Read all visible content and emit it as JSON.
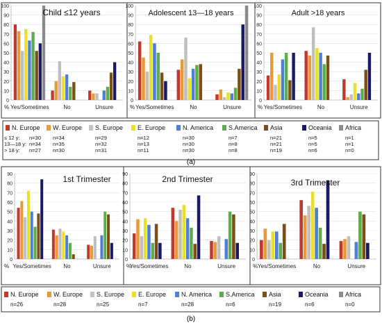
{
  "captions": {
    "a": "(a)",
    "b": "(b)"
  },
  "colors": {
    "N. Europe": "#c0392b",
    "W. Europe": "#e69a3a",
    "S. Europe": "#bfbfbf",
    "E. Europe": "#e8e02a",
    "N. America": "#4d7fd6",
    "S.America": "#5fad4a",
    "Asia": "#7a4f18",
    "Oceania": "#1a1a66",
    "Africa": "#8a8a8a"
  },
  "legend_a": {
    "series": [
      "N. Europe",
      "W. Europe",
      "S. Europe",
      "E. Europe",
      "N. America",
      "S.America",
      "Asia",
      "Oceania",
      "Africa"
    ],
    "rows": [
      {
        "label": "≤ 12 y:",
        "values": [
          "n=30",
          "n=34",
          "n=29",
          "n=12",
          "n=30",
          "n=7",
          "n=21",
          "n=5",
          "n=1"
        ]
      },
      {
        "label": "13—18 y:",
        "values": [
          "n=34",
          "n=35",
          "n=32",
          "n=13",
          "n=30",
          "n=8",
          "n=21",
          "n=5",
          "n=1"
        ]
      },
      {
        "label": "> 18 y:",
        "values": [
          "n=27",
          "n=30",
          "n=31",
          "n=11",
          "n=30",
          "n=8",
          "n=19",
          "n=6",
          "n=0"
        ]
      }
    ]
  },
  "legend_b": {
    "series": [
      "N. Europe",
      "W. Europe",
      "S. Europe",
      "E. Europe",
      "N. America",
      "S.America",
      "Asia",
      "Oceania",
      "Africa"
    ],
    "values": [
      "n=26",
      "n=28",
      "n=25",
      "n=7",
      "n=28",
      "n=6",
      "n=19",
      "n=6",
      "n=0"
    ]
  },
  "chart_data": [
    {
      "type": "bar",
      "title": "Child ≤12 years",
      "categories": [
        "Yes/Sometimes",
        "No",
        "Unsure"
      ],
      "ylim": [
        0,
        100
      ],
      "yticks": [
        "0",
        "10",
        "20",
        "30",
        "40",
        "50",
        "60",
        "70",
        "80",
        "90",
        "100"
      ],
      "ylabel": "%",
      "series": [
        {
          "name": "N. Europe",
          "values": [
            80,
            10,
            10
          ]
        },
        {
          "name": "W. Europe",
          "values": [
            73,
            20,
            7
          ]
        },
        {
          "name": "S. Europe",
          "values": [
            52,
            41,
            7
          ]
        },
        {
          "name": "E. Europe",
          "values": [
            75,
            25,
            0
          ]
        },
        {
          "name": "N. America",
          "values": [
            63,
            27,
            10
          ]
        },
        {
          "name": "S.America",
          "values": [
            72,
            14,
            14
          ]
        },
        {
          "name": "Asia",
          "values": [
            52,
            19,
            29
          ]
        },
        {
          "name": "Oceania",
          "values": [
            60,
            0,
            40
          ]
        },
        {
          "name": "Africa",
          "values": [
            100,
            0,
            0
          ]
        }
      ]
    },
    {
      "type": "bar",
      "title": "Adolescent 13—18 years",
      "categories": [
        "Yes/Sometimes",
        "No",
        "Unsure"
      ],
      "ylim": [
        0,
        100
      ],
      "yticks": [
        "0",
        "10",
        "20",
        "30",
        "40",
        "50",
        "60",
        "70",
        "80",
        "90",
        "100"
      ],
      "ylabel": "%",
      "series": [
        {
          "name": "N. Europe",
          "values": [
            62,
            32,
            6
          ]
        },
        {
          "name": "W. Europe",
          "values": [
            45,
            43,
            11
          ]
        },
        {
          "name": "S. Europe",
          "values": [
            30,
            66,
            3
          ]
        },
        {
          "name": "E. Europe",
          "values": [
            69,
            23,
            8
          ]
        },
        {
          "name": "N. America",
          "values": [
            60,
            33,
            7
          ]
        },
        {
          "name": "S.America",
          "values": [
            50,
            37,
            13
          ]
        },
        {
          "name": "Asia",
          "values": [
            29,
            38,
            33
          ]
        },
        {
          "name": "Oceania",
          "values": [
            20,
            0,
            80
          ]
        },
        {
          "name": "Africa",
          "values": [
            0,
            0,
            100
          ]
        }
      ]
    },
    {
      "type": "bar",
      "title": "Adult >18 years",
      "categories": [
        "Yes/Sometimes",
        "No",
        "Unsure"
      ],
      "ylim": [
        0,
        100
      ],
      "yticks": [
        "0",
        "10",
        "20",
        "30",
        "40",
        "50",
        "60",
        "70",
        "80",
        "90",
        "100"
      ],
      "ylabel": "%",
      "series": [
        {
          "name": "N. Europe",
          "values": [
            26,
            52,
            22
          ]
        },
        {
          "name": "W. Europe",
          "values": [
            50,
            47,
            3
          ]
        },
        {
          "name": "S. Europe",
          "values": [
            16,
            77,
            6
          ]
        },
        {
          "name": "E. Europe",
          "values": [
            27,
            55,
            18
          ]
        },
        {
          "name": "N. America",
          "values": [
            43,
            50,
            7
          ]
        },
        {
          "name": "S.America",
          "values": [
            50,
            38,
            12
          ]
        },
        {
          "name": "Asia",
          "values": [
            21,
            47,
            32
          ]
        },
        {
          "name": "Oceania",
          "values": [
            50,
            0,
            50
          ]
        },
        {
          "name": "Africa",
          "values": [
            0,
            0,
            0
          ]
        }
      ]
    },
    {
      "type": "bar",
      "title": "1st Trimester",
      "categories": [
        "Yes/Sometimes",
        "No",
        "Unsure"
      ],
      "ylim": [
        0,
        90
      ],
      "yticks": [
        "0",
        "10",
        "20",
        "30",
        "40",
        "50",
        "60",
        "70",
        "80",
        "90"
      ],
      "ylabel": "%",
      "series": [
        {
          "name": "N. Europe",
          "values": [
            54,
            31,
            15
          ]
        },
        {
          "name": "W. Europe",
          "values": [
            61,
            25,
            14
          ]
        },
        {
          "name": "S. Europe",
          "values": [
            44,
            32,
            24
          ]
        },
        {
          "name": "E. Europe",
          "values": [
            72,
            29,
            0
          ]
        },
        {
          "name": "N. America",
          "values": [
            50,
            25,
            25
          ]
        },
        {
          "name": "S.America",
          "values": [
            34,
            17,
            50
          ]
        },
        {
          "name": "Asia",
          "values": [
            48,
            5,
            47
          ]
        },
        {
          "name": "Oceania",
          "values": [
            84,
            0,
            17
          ]
        },
        {
          "name": "Africa",
          "values": [
            0,
            0,
            0
          ]
        }
      ]
    },
    {
      "type": "bar",
      "title": "2nd Trimester",
      "categories": [
        "Yes/Sometimes",
        "No",
        "Unsure"
      ],
      "ylim": [
        0,
        90
      ],
      "yticks": [
        "0",
        "10",
        "20",
        "30",
        "40",
        "50",
        "60",
        "70",
        "80",
        "90"
      ],
      "ylabel": "%",
      "series": [
        {
          "name": "N. Europe",
          "values": [
            27,
            54,
            19
          ]
        },
        {
          "name": "W. Europe",
          "values": [
            42,
            40,
            18
          ]
        },
        {
          "name": "S. Europe",
          "values": [
            24,
            52,
            24
          ]
        },
        {
          "name": "E. Europe",
          "values": [
            43,
            57,
            0
          ]
        },
        {
          "name": "N. America",
          "values": [
            36,
            43,
            21
          ]
        },
        {
          "name": "S.America",
          "values": [
            17,
            33,
            50
          ]
        },
        {
          "name": "Asia",
          "values": [
            37,
            16,
            47
          ]
        },
        {
          "name": "Oceania",
          "values": [
            17,
            67,
            17
          ]
        },
        {
          "name": "Africa",
          "values": [
            0,
            0,
            0
          ]
        }
      ]
    },
    {
      "type": "bar",
      "title": "3rd Trimester",
      "categories": [
        "Yes/Sometimes",
        "No",
        "Unsure"
      ],
      "ylim": [
        0,
        90
      ],
      "yticks": [
        "0",
        "10",
        "20",
        "30",
        "40",
        "50",
        "60",
        "70",
        "80",
        "90"
      ],
      "ylabel": "%",
      "series": [
        {
          "name": "N. Europe",
          "values": [
            20,
            62,
            19
          ]
        },
        {
          "name": "W. Europe",
          "values": [
            32,
            46,
            21
          ]
        },
        {
          "name": "S. Europe",
          "values": [
            20,
            56,
            24
          ]
        },
        {
          "name": "E. Europe",
          "values": [
            29,
            71,
            0
          ]
        },
        {
          "name": "N. America",
          "values": [
            29,
            54,
            18
          ]
        },
        {
          "name": "S.America",
          "values": [
            17,
            33,
            50
          ]
        },
        {
          "name": "Asia",
          "values": [
            37,
            16,
            47
          ]
        },
        {
          "name": "Oceania",
          "values": [
            0,
            83,
            17
          ]
        },
        {
          "name": "Africa",
          "values": [
            0,
            0,
            0
          ]
        }
      ]
    }
  ]
}
